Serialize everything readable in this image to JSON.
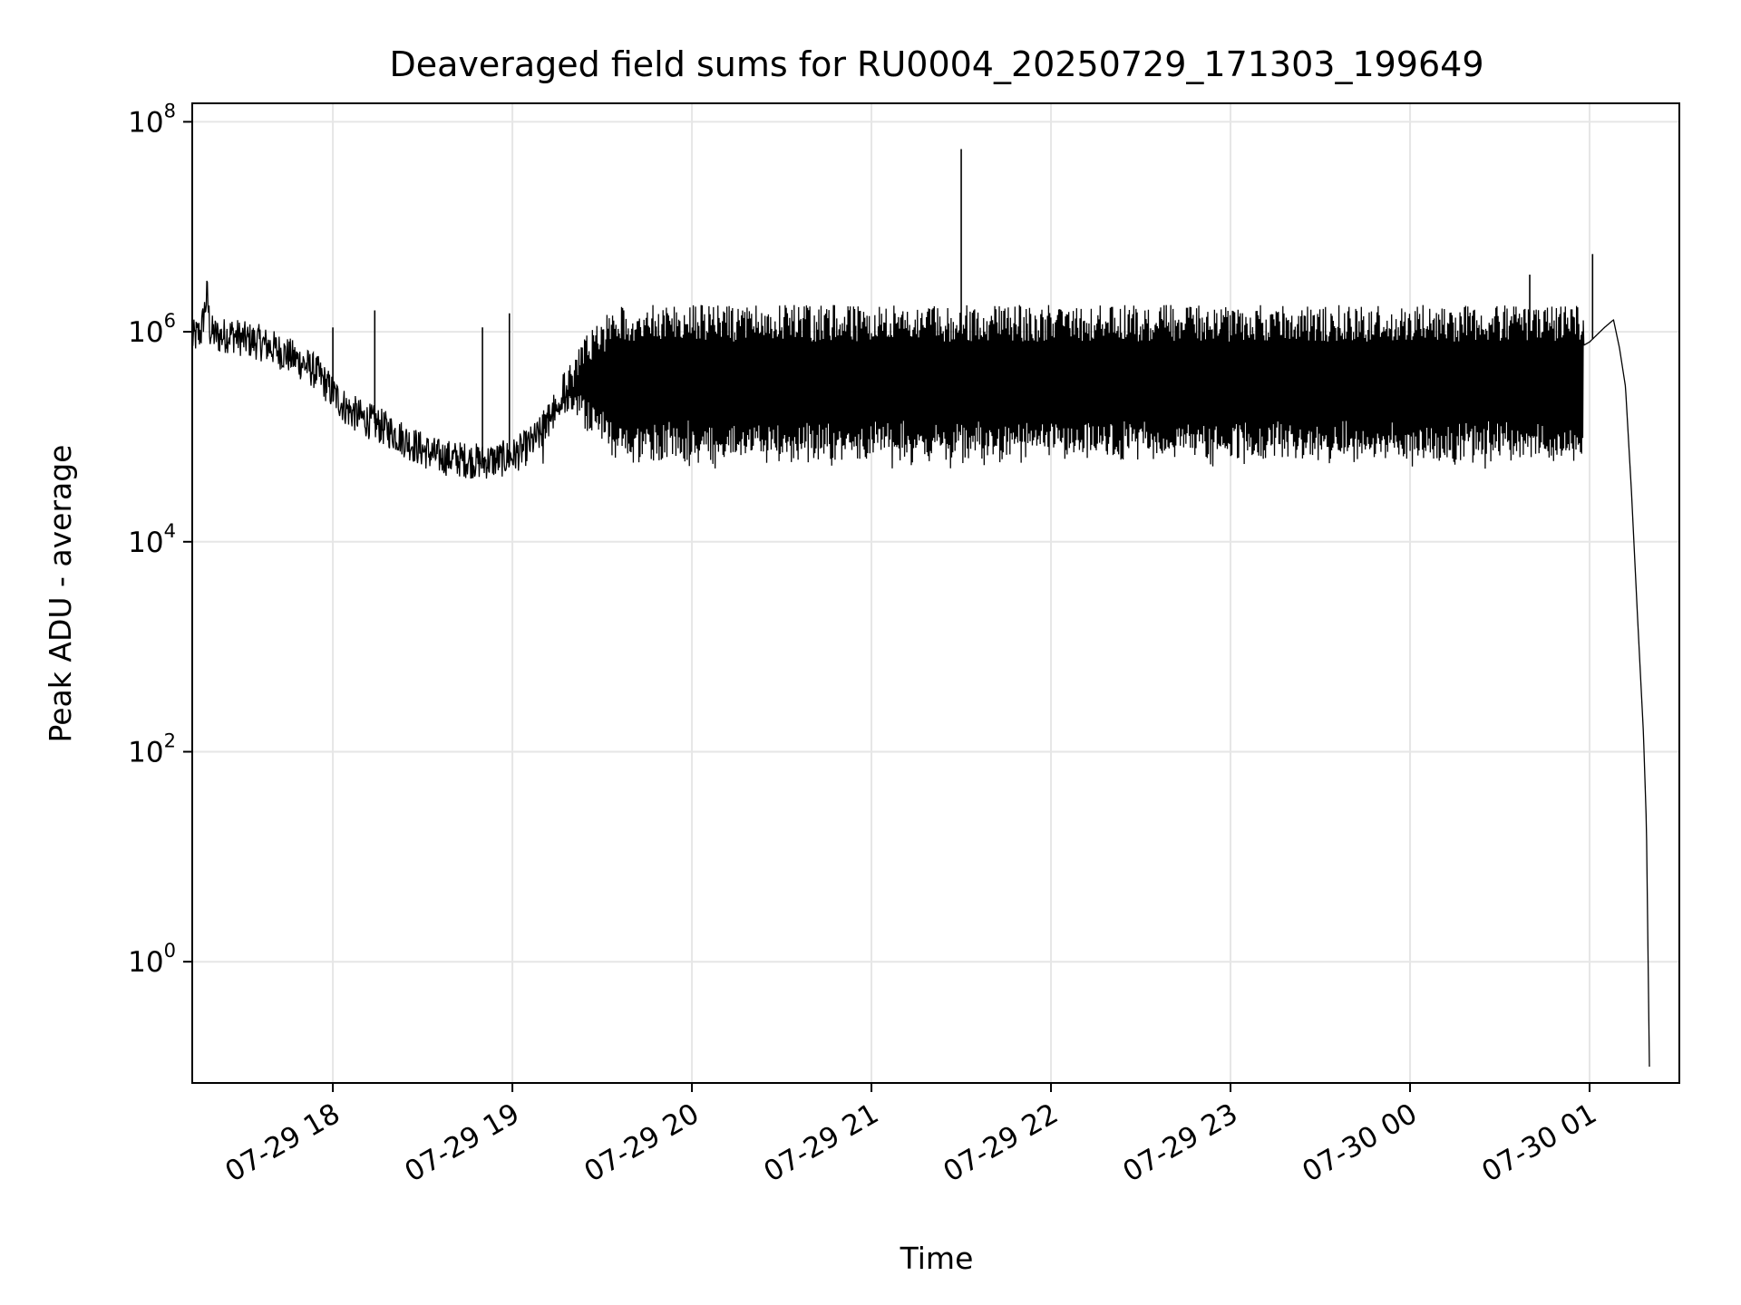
{
  "chart_data": {
    "type": "line",
    "title": "Deaveraged field sums for RU0004_20250729_171303_199649",
    "xlabel": "Time",
    "ylabel": "Peak ADU - average",
    "yscale": "log",
    "grid": true,
    "colors": {
      "line": "#000000",
      "grid": "#e6e6e6",
      "frame": "#000000"
    },
    "xlim": [
      "2025-07-29 17:13",
      "2025-07-30 01:30"
    ],
    "ylim": [
      0.07,
      150000000
    ],
    "x_ticks": [
      {
        "value": "2025-07-29 18:00",
        "label": "07-29 18"
      },
      {
        "value": "2025-07-29 19:00",
        "label": "07-29 19"
      },
      {
        "value": "2025-07-29 20:00",
        "label": "07-29 20"
      },
      {
        "value": "2025-07-29 21:00",
        "label": "07-29 21"
      },
      {
        "value": "2025-07-29 22:00",
        "label": "07-29 22"
      },
      {
        "value": "2025-07-29 23:00",
        "label": "07-29 23"
      },
      {
        "value": "2025-07-30 00:00",
        "label": "07-30 00"
      },
      {
        "value": "2025-07-30 01:00",
        "label": "07-30 01"
      }
    ],
    "y_ticks": [
      {
        "value": 1,
        "base": "10",
        "exp": "0"
      },
      {
        "value": 100,
        "base": "10",
        "exp": "2"
      },
      {
        "value": 10000,
        "base": "10",
        "exp": "4"
      },
      {
        "value": 1000000,
        "base": "10",
        "exp": "6"
      },
      {
        "value": 100000000,
        "base": "10",
        "exp": "8"
      }
    ],
    "series": [
      {
        "points": [
          [
            "2025-07-29 17:13",
            850000
          ],
          [
            "2025-07-29 17:16",
            1000000
          ],
          [
            "2025-07-29 17:18",
            2300000
          ],
          [
            "2025-07-29 17:19",
            1000000
          ],
          [
            "2025-07-29 17:22",
            900000
          ],
          [
            "2025-07-29 17:26",
            950000
          ],
          [
            "2025-07-29 17:30",
            850000
          ],
          [
            "2025-07-29 17:35",
            800000
          ],
          [
            "2025-07-29 17:40",
            700000
          ],
          [
            "2025-07-29 17:45",
            600000
          ],
          [
            "2025-07-29 17:50",
            500000
          ],
          [
            "2025-07-29 17:55",
            400000
          ],
          [
            "2025-07-29 18:00",
            260000
          ],
          [
            "2025-07-29 18:05",
            180000
          ],
          [
            "2025-07-29 18:10",
            150000
          ],
          [
            "2025-07-29 18:15",
            130000
          ],
          [
            "2025-07-29 18:20",
            110000
          ],
          [
            "2025-07-29 18:25",
            90000
          ],
          [
            "2025-07-29 18:30",
            75000
          ],
          [
            "2025-07-29 18:35",
            65000
          ],
          [
            "2025-07-29 18:40",
            62000
          ],
          [
            "2025-07-29 18:45",
            60000
          ],
          [
            "2025-07-29 18:50",
            58000
          ],
          [
            "2025-07-29 18:55",
            60000
          ],
          [
            "2025-07-29 19:00",
            65000
          ],
          [
            "2025-07-29 19:05",
            80000
          ],
          [
            "2025-07-29 19:10",
            110000
          ],
          [
            "2025-07-29 19:15",
            180000
          ],
          [
            "2025-07-29 19:20",
            300000
          ],
          [
            "2025-07-29 19:30",
            400000
          ],
          [
            "2025-07-29 20:00",
            450000
          ],
          [
            "2025-07-29 20:30",
            400000
          ],
          [
            "2025-07-29 21:00",
            380000
          ],
          [
            "2025-07-29 21:30",
            350000
          ],
          [
            "2025-07-29 22:00",
            350000
          ],
          [
            "2025-07-29 22:30",
            330000
          ],
          [
            "2025-07-29 23:00",
            320000
          ],
          [
            "2025-07-29 23:30",
            320000
          ],
          [
            "2025-07-30 00:00",
            350000
          ],
          [
            "2025-07-30 00:30",
            400000
          ],
          [
            "2025-07-30 00:50",
            550000
          ],
          [
            "2025-07-30 01:00",
            800000
          ],
          [
            "2025-07-30 01:05",
            1100000
          ],
          [
            "2025-07-30 01:08",
            1300000
          ],
          [
            "2025-07-30 01:10",
            700000
          ],
          [
            "2025-07-30 01:12",
            300000
          ],
          [
            "2025-07-30 01:14",
            30000
          ],
          [
            "2025-07-30 01:16",
            2000
          ],
          [
            "2025-07-30 01:18",
            150
          ],
          [
            "2025-07-30 01:19",
            20
          ],
          [
            "2025-07-30 01:20",
            0.1
          ]
        ],
        "envelope": {
          "description_free": true,
          "x_start": "2025-07-29 19:10",
          "x_end": "2025-07-30 00:58",
          "upper": 1800000,
          "lower": 60000
        },
        "spikes": [
          {
            "x": "2025-07-29 17:18",
            "y": 2500000
          },
          {
            "x": "2025-07-29 18:00",
            "y": 1100000
          },
          {
            "x": "2025-07-29 18:14",
            "y": 1600000
          },
          {
            "x": "2025-07-29 18:50",
            "y": 1100000
          },
          {
            "x": "2025-07-29 18:59",
            "y": 1500000
          },
          {
            "x": "2025-07-29 21:30",
            "y": 55000000
          },
          {
            "x": "2025-07-30 00:40",
            "y": 3500000
          },
          {
            "x": "2025-07-30 01:01",
            "y": 5500000
          }
        ]
      }
    ]
  }
}
